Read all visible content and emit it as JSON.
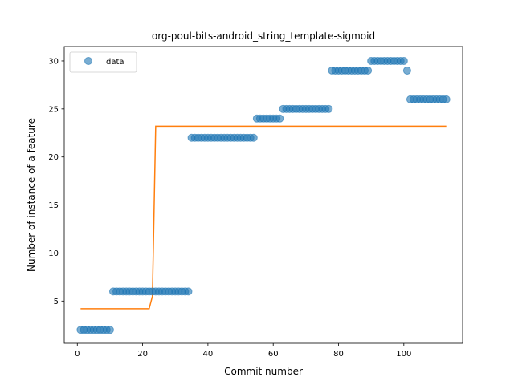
{
  "chart_data": {
    "type": "scatter",
    "title": "org-poul-bits-android_string_template-sigmoid",
    "xlabel": "Commit number",
    "ylabel": "Number of instance of a feature",
    "xlim": [
      -4,
      118
    ],
    "ylim": [
      0.6,
      31.5
    ],
    "xticks": [
      0,
      20,
      40,
      60,
      80,
      100
    ],
    "yticks": [
      5,
      10,
      15,
      20,
      25,
      30
    ],
    "grid": false,
    "legend": {
      "placement": "top-left",
      "entries": [
        "data"
      ]
    },
    "colors": {
      "data": "#1f77b4",
      "fit": "#ff7f0e"
    },
    "series": [
      {
        "name": "data",
        "kind": "scatter",
        "runs": [
          {
            "from": 1,
            "to": 10,
            "y": 2
          },
          {
            "from": 11,
            "to": 34,
            "y": 6
          },
          {
            "from": 35,
            "to": 54,
            "y": 22
          },
          {
            "from": 55,
            "to": 62,
            "y": 24
          },
          {
            "from": 63,
            "to": 77,
            "y": 25
          },
          {
            "from": 78,
            "to": 89,
            "y": 29
          },
          {
            "from": 90,
            "to": 100,
            "y": 30
          },
          {
            "from": 101,
            "to": 101,
            "y": 29
          },
          {
            "from": 102,
            "to": 113,
            "y": 26
          }
        ]
      },
      {
        "kind": "line",
        "points": [
          [
            1,
            4.2
          ],
          [
            22,
            4.2
          ],
          [
            23,
            5.5
          ],
          [
            24,
            23.2
          ],
          [
            113,
            23.2
          ]
        ]
      }
    ]
  }
}
